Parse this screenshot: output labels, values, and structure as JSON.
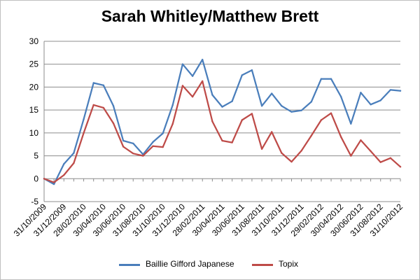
{
  "chart_data": {
    "type": "line",
    "title": "Sarah Whitley/Matthew Brett",
    "xlabel": "",
    "ylabel": "",
    "ylim": [
      -5,
      30
    ],
    "yticks": [
      -5,
      0,
      5,
      10,
      15,
      20,
      25,
      30
    ],
    "grid": true,
    "legend": "bottom",
    "x_tick_labels": [
      "31/10/2009",
      "31/12/2009",
      "28/02/2010",
      "30/04/2010",
      "30/06/2010",
      "31/08/2010",
      "31/10/2010",
      "31/12/2010",
      "28/02/2011",
      "30/04/2011",
      "30/06/2011",
      "31/08/2011",
      "31/10/2011",
      "31/12/2011",
      "29/02/2012",
      "30/04/2012",
      "30/06/2012",
      "31/08/2012",
      "31/10/2012"
    ],
    "x": [
      "31/10/2009",
      "30/11/2009",
      "31/12/2009",
      "31/01/2010",
      "28/02/2010",
      "31/03/2010",
      "30/04/2010",
      "31/05/2010",
      "30/06/2010",
      "31/07/2010",
      "31/08/2010",
      "30/09/2010",
      "31/10/2010",
      "30/11/2010",
      "31/12/2010",
      "31/01/2011",
      "28/02/2011",
      "31/03/2011",
      "30/04/2011",
      "31/05/2011",
      "30/06/2011",
      "31/07/2011",
      "31/08/2011",
      "30/09/2011",
      "31/10/2011",
      "30/11/2011",
      "31/12/2011",
      "31/01/2012",
      "29/02/2012",
      "31/03/2012",
      "30/04/2012",
      "31/05/2012",
      "30/06/2012",
      "31/07/2012",
      "31/08/2012",
      "30/09/2012",
      "31/10/2012"
    ],
    "series": [
      {
        "name": "Baillie Gifford Japanese",
        "color": "#4a7ebb",
        "values": [
          0,
          -1.2,
          3.2,
          5.6,
          13.0,
          20.9,
          20.4,
          15.9,
          8.3,
          7.7,
          5.3,
          8.0,
          9.9,
          16.1,
          25.0,
          22.4,
          26.0,
          18.3,
          15.7,
          16.9,
          22.6,
          23.7,
          15.9,
          18.6,
          15.9,
          14.6,
          14.9,
          16.8,
          21.8,
          21.8,
          17.9,
          12.0,
          18.8,
          16.2,
          17.1,
          19.4,
          19.2
        ]
      },
      {
        "name": "Topix",
        "color": "#be4b48",
        "values": [
          0,
          -0.8,
          0.8,
          3.4,
          10.0,
          16.1,
          15.5,
          12.1,
          7.0,
          5.5,
          5.0,
          7.1,
          6.9,
          12.0,
          20.3,
          17.9,
          21.3,
          12.5,
          8.3,
          7.9,
          12.8,
          14.2,
          6.5,
          10.2,
          5.6,
          3.7,
          6.1,
          9.4,
          12.8,
          14.3,
          9.1,
          5.0,
          8.4,
          6.0,
          3.6,
          4.5,
          2.6
        ]
      }
    ]
  }
}
